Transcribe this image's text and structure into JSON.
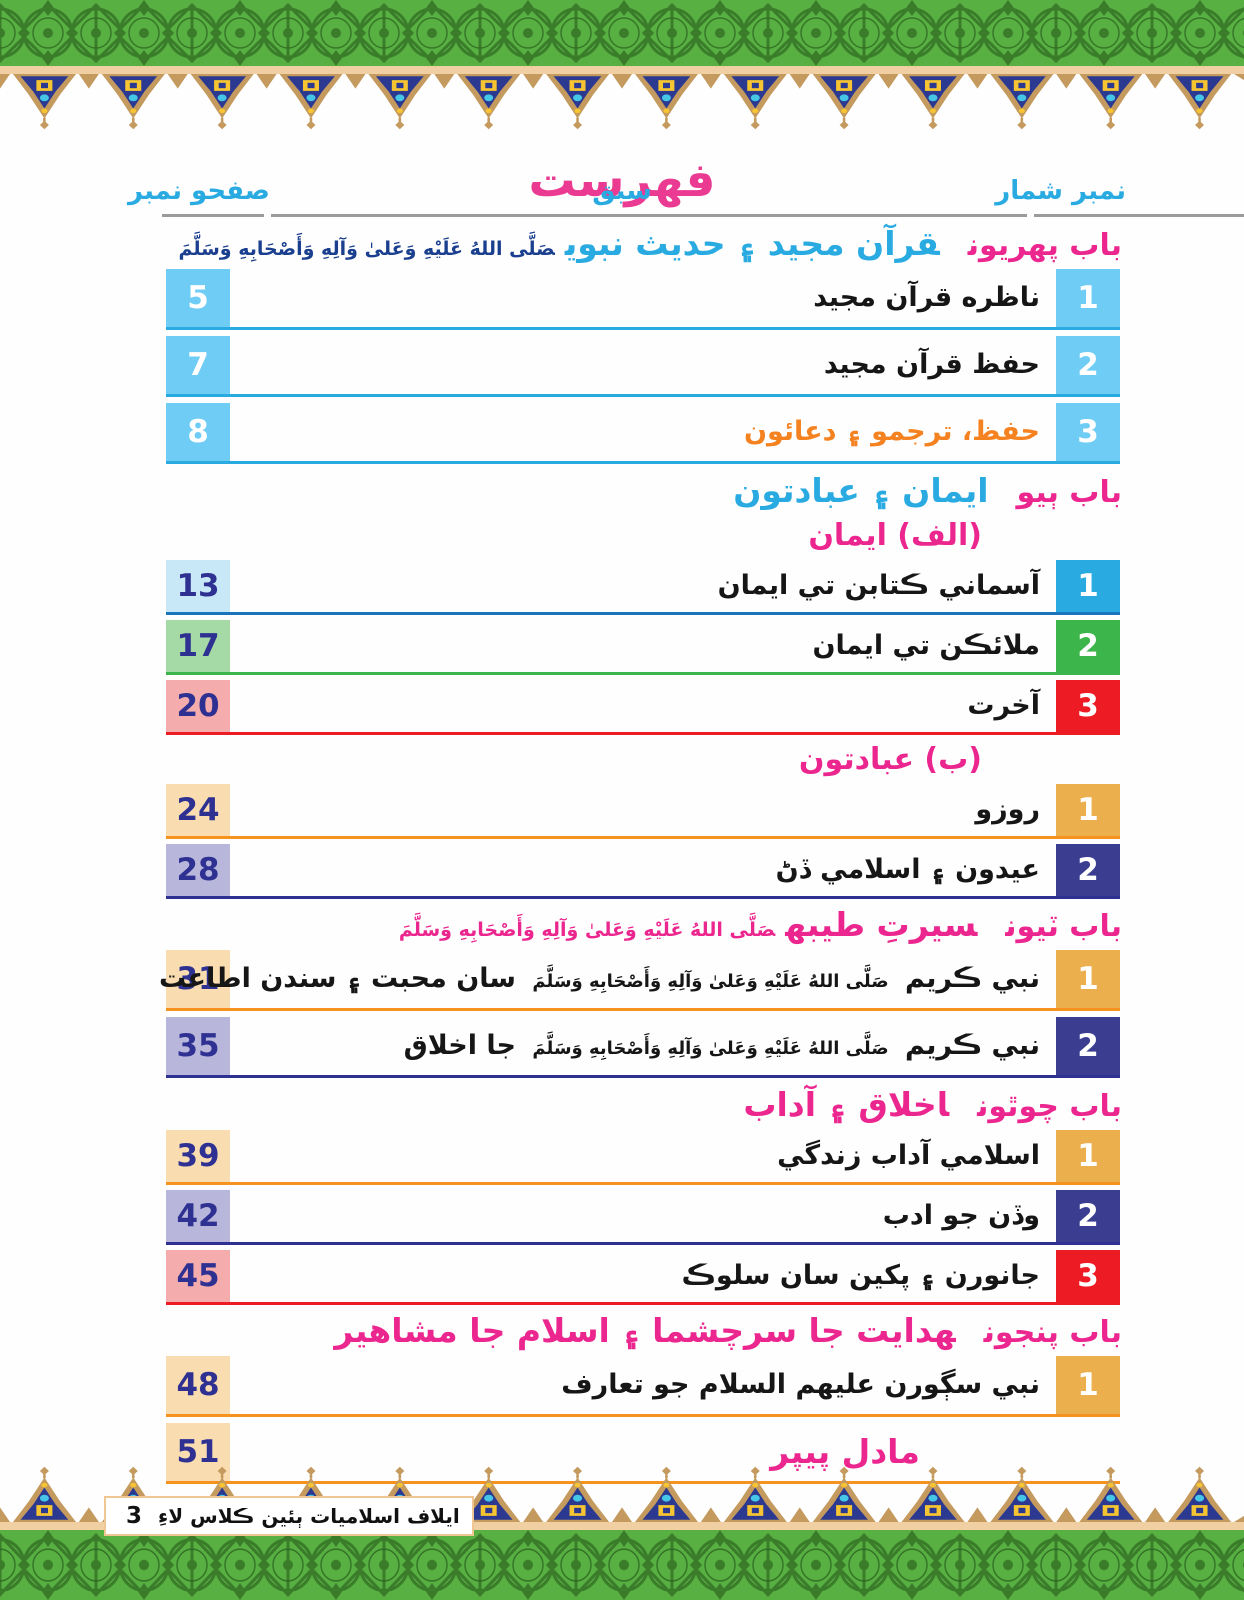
{
  "header": {
    "title": "فهرست",
    "col_serial": "نمبر شمار",
    "col_lesson": "سبق",
    "col_page": "صفحو نمبر"
  },
  "honorific": "صَلَّى اللهُ عَلَيْهِ وَعَلىٰ وَآلِهِ وَأَصْحَابِهِ وَسَلَّمَ",
  "footer": {
    "page_number": "3",
    "book_title": "ايلاف اسلاميات ٻئين ڪلاس لاءِ"
  },
  "colors": {
    "magenta": "#ec268f",
    "cyan": "#29abe2",
    "navy": "#1b3f8f",
    "orange": "#f58220",
    "black": "#161616"
  },
  "schemes": {
    "sky": {
      "num_bg": "#6fcdf5",
      "num_fg": "#ffffff",
      "page_bg": "#6fcdf5",
      "page_fg": "#ffffff",
      "line": "#29abe2"
    },
    "blue": {
      "num_bg": "#29abe2",
      "num_fg": "#ffffff",
      "page_bg": "#c8e8f8",
      "page_fg": "#2e3192",
      "line": "#1b75bc"
    },
    "green": {
      "num_bg": "#3cb54a",
      "num_fg": "#ffffff",
      "page_bg": "#a5d9a5",
      "page_fg": "#2e3192",
      "line": "#3cb54a"
    },
    "red": {
      "num_bg": "#ed1c24",
      "num_fg": "#ffffff",
      "page_bg": "#f5acac",
      "page_fg": "#2e3192",
      "line": "#ed1c24"
    },
    "gold": {
      "num_bg": "#ecaf4e",
      "num_fg": "#ffffff",
      "page_bg": "#f9ddb1",
      "page_fg": "#2e3192",
      "line": "#f6921e"
    },
    "indigo": {
      "num_bg": "#3b3e90",
      "num_fg": "#ffffff",
      "page_bg": "#b8b7db",
      "page_fg": "#2e3192",
      "line": "#2e3192"
    }
  },
  "sections": [
    {
      "label": "باب پهريون",
      "title": "قرآن مجيد ۽ حديث نبوي",
      "title_color": "cyan",
      "honorific": true,
      "honorific_color": "navy",
      "groups": [
        {
          "rows": [
            {
              "serial": "1",
              "page": "5",
              "title": "ناظره قرآن مجيد",
              "scheme": "sky",
              "size": "lg"
            },
            {
              "serial": "2",
              "page": "7",
              "title": "حفظ قرآن مجيد",
              "scheme": "sky",
              "size": "lg"
            },
            {
              "serial": "3",
              "page": "8",
              "title": "حفظ، ترجمو ۽ دعائون",
              "title_color": "orange",
              "scheme": "sky",
              "size": "lg"
            }
          ]
        }
      ]
    },
    {
      "label": "باب ٻيو",
      "title": "ايمان ۽ عبادتون",
      "title_color": "cyan",
      "honorific": false,
      "groups": [
        {
          "subhead": "(الف) ايمان",
          "rows": [
            {
              "serial": "1",
              "page": "13",
              "title": "آسماني ڪتابن تي ايمان",
              "scheme": "blue"
            },
            {
              "serial": "2",
              "page": "17",
              "title": "ملائڪن تي ايمان",
              "scheme": "green"
            },
            {
              "serial": "3",
              "page": "20",
              "title": "آخرت",
              "scheme": "red"
            }
          ]
        },
        {
          "subhead": "(ب) عبادتون",
          "rows": [
            {
              "serial": "1",
              "page": "24",
              "title": "روزو",
              "scheme": "gold"
            },
            {
              "serial": "2",
              "page": "28",
              "title": "عيدون ۽ اسلامي ڏڻ",
              "scheme": "indigo"
            }
          ]
        }
      ]
    },
    {
      "label": "باب ٽيون",
      "title": "سيرتِ طيبه",
      "title_color": "magenta",
      "honorific": true,
      "honorific_color": "magenta",
      "groups": [
        {
          "rows": [
            {
              "serial": "1",
              "page": "31",
              "title_pre": "نبي ڪريم",
              "title_post": "سان محبت ۽ سندن اطاعت",
              "scheme": "gold",
              "size": "lg"
            },
            {
              "serial": "2",
              "page": "35",
              "title_pre": "نبي ڪريم",
              "title_post": "جا اخلاق",
              "scheme": "indigo",
              "size": "lg"
            }
          ]
        }
      ]
    },
    {
      "label": "باب چوٿون",
      "title": "اخلاق ۽ آداب",
      "title_color": "magenta",
      "honorific": false,
      "groups": [
        {
          "rows": [
            {
              "serial": "1",
              "page": "39",
              "title": "اسلامي آداب زندگي",
              "scheme": "gold"
            },
            {
              "serial": "2",
              "page": "42",
              "title": "وڏن جو ادب",
              "scheme": "indigo"
            },
            {
              "serial": "3",
              "page": "45",
              "title": "جانورن ۽ پکين سان سلوڪ",
              "scheme": "red"
            }
          ]
        }
      ]
    },
    {
      "label": "باب پنجون",
      "title": "هدايت جا سرچشما ۽ اسلام جا مشاهير",
      "title_color": "magenta",
      "honorific": false,
      "groups": [
        {
          "rows": [
            {
              "serial": "1",
              "page": "48",
              "title": "نبي سڳورن عليهم السلام جو تعارف",
              "scheme": "gold",
              "size": "lg"
            },
            {
              "page": "51",
              "title": "مادل پيپر",
              "title_color": "magenta",
              "scheme": "gold",
              "size": "lg",
              "model": true
            }
          ]
        }
      ]
    }
  ]
}
